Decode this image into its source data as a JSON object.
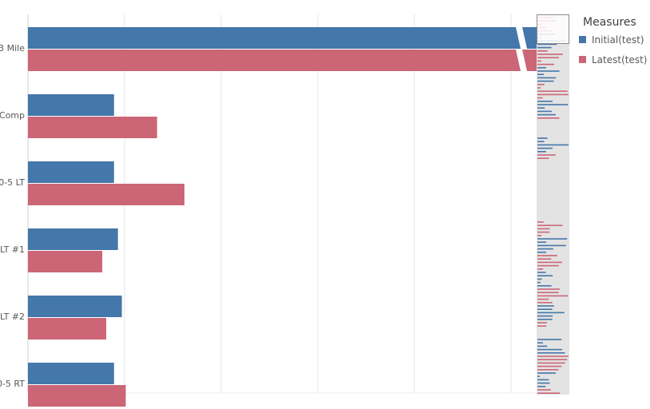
{
  "chart_data": {
    "type": "bar",
    "orientation": "horizontal",
    "categories": [
      "3 Mile",
      "Comp",
      "0-5 LT",
      "LT #1",
      "LT #2",
      "0-5 RT"
    ],
    "series": [
      {
        "name": "Initial(test)",
        "color": "#4477aa",
        "values": [
          800,
          22,
          22,
          23,
          24,
          22
        ]
      },
      {
        "name": "Latest(test)",
        "color": "#cc6677",
        "values": [
          800,
          33,
          40,
          19,
          20,
          25
        ]
      }
    ],
    "xlim": [
      0,
      530
    ],
    "axis_break": true,
    "grid": true,
    "legend": {
      "title": "Measures",
      "placement": "right"
    },
    "scrollbar": true
  }
}
